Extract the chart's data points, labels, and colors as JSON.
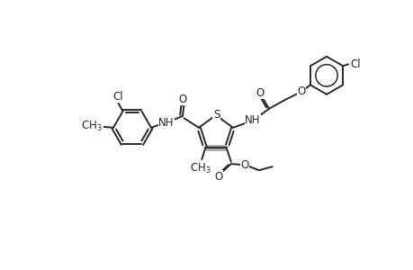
{
  "bg_color": "#ffffff",
  "line_color": "#2a2a2a",
  "line_width": 1.4,
  "font_size": 8.5,
  "figsize": [
    4.6,
    3.0
  ],
  "dpi": 100,
  "xlim": [
    0,
    46
  ],
  "ylim": [
    0,
    30
  ]
}
